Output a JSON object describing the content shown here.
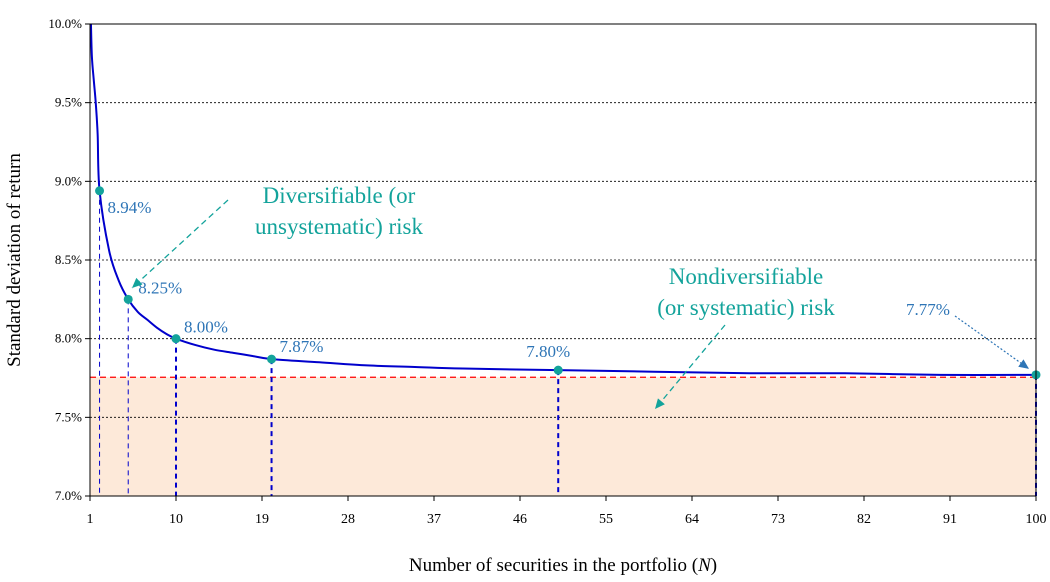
{
  "chart_data": {
    "type": "line",
    "xlabel_prefix": "Number of securities in the portfolio  (",
    "xlabel_var": "N",
    "xlabel_suffix": ")",
    "ylabel": "Standard deviation of return",
    "xlim": [
      1,
      100
    ],
    "ylim": [
      0.07,
      0.1
    ],
    "x_ticks": [
      1,
      10,
      19,
      28,
      37,
      46,
      55,
      64,
      73,
      82,
      91,
      100
    ],
    "y_ticks": [
      {
        "value": 0.07,
        "label": "7.0%"
      },
      {
        "value": 0.075,
        "label": "7.5%"
      },
      {
        "value": 0.08,
        "label": "8.0%"
      },
      {
        "value": 0.085,
        "label": "8.5%"
      },
      {
        "value": 0.09,
        "label": "9.0%"
      },
      {
        "value": 0.095,
        "label": "9.5%"
      },
      {
        "value": 0.1,
        "label": "10.0%"
      }
    ],
    "grid": "horizontal dotted",
    "series": [
      {
        "points": [
          {
            "x": 1.1,
            "y": 0.1
          },
          {
            "x": 1.2,
            "y": 0.0979
          },
          {
            "x": 1.4,
            "y": 0.0964
          },
          {
            "x": 1.6,
            "y": 0.095
          },
          {
            "x": 1.8,
            "y": 0.093
          },
          {
            "x": 2,
            "y": 0.0894
          },
          {
            "x": 3,
            "y": 0.0856
          },
          {
            "x": 4,
            "y": 0.0837
          },
          {
            "x": 5,
            "y": 0.0825
          },
          {
            "x": 6,
            "y": 0.0817
          },
          {
            "x": 7,
            "y": 0.0812
          },
          {
            "x": 8,
            "y": 0.0807
          },
          {
            "x": 9,
            "y": 0.0803
          },
          {
            "x": 10,
            "y": 0.08
          },
          {
            "x": 12,
            "y": 0.0796
          },
          {
            "x": 14,
            "y": 0.0793
          },
          {
            "x": 16,
            "y": 0.0791
          },
          {
            "x": 18,
            "y": 0.0789
          },
          {
            "x": 20,
            "y": 0.0787
          },
          {
            "x": 25,
            "y": 0.0785
          },
          {
            "x": 30,
            "y": 0.0783
          },
          {
            "x": 35,
            "y": 0.0782
          },
          {
            "x": 40,
            "y": 0.0781
          },
          {
            "x": 50,
            "y": 0.078
          },
          {
            "x": 60,
            "y": 0.0779
          },
          {
            "x": 70,
            "y": 0.0778
          },
          {
            "x": 80,
            "y": 0.0778
          },
          {
            "x": 90,
            "y": 0.0777
          },
          {
            "x": 100,
            "y": 0.0777
          }
        ]
      }
    ],
    "highlighted_points": [
      {
        "x": 2,
        "y": 0.0894,
        "label": "8.94%"
      },
      {
        "x": 5,
        "y": 0.0825,
        "label": "8.25%"
      },
      {
        "x": 10,
        "y": 0.08,
        "label": "8.00%"
      },
      {
        "x": 20,
        "y": 0.0787,
        "label": "7.87%"
      },
      {
        "x": 50,
        "y": 0.078,
        "label": "7.80%"
      },
      {
        "x": 100,
        "y": 0.0777,
        "label": "7.77%"
      }
    ],
    "systematic_risk_level": 0.07755,
    "annotations": {
      "diversifiable": [
        "Diversifiable (or",
        "unsystematic) risk"
      ],
      "nondiversifiable": [
        "Nondiversifiable",
        "(or systematic) risk"
      ]
    },
    "colors": {
      "line": "#0000CC",
      "marker": "#13A39B",
      "data_label": "#2E75B6",
      "annotation": "#13A39B",
      "shade": "#FDE9D9",
      "systematic_line": "#FF0000",
      "guide_line": "#0000CC"
    }
  }
}
